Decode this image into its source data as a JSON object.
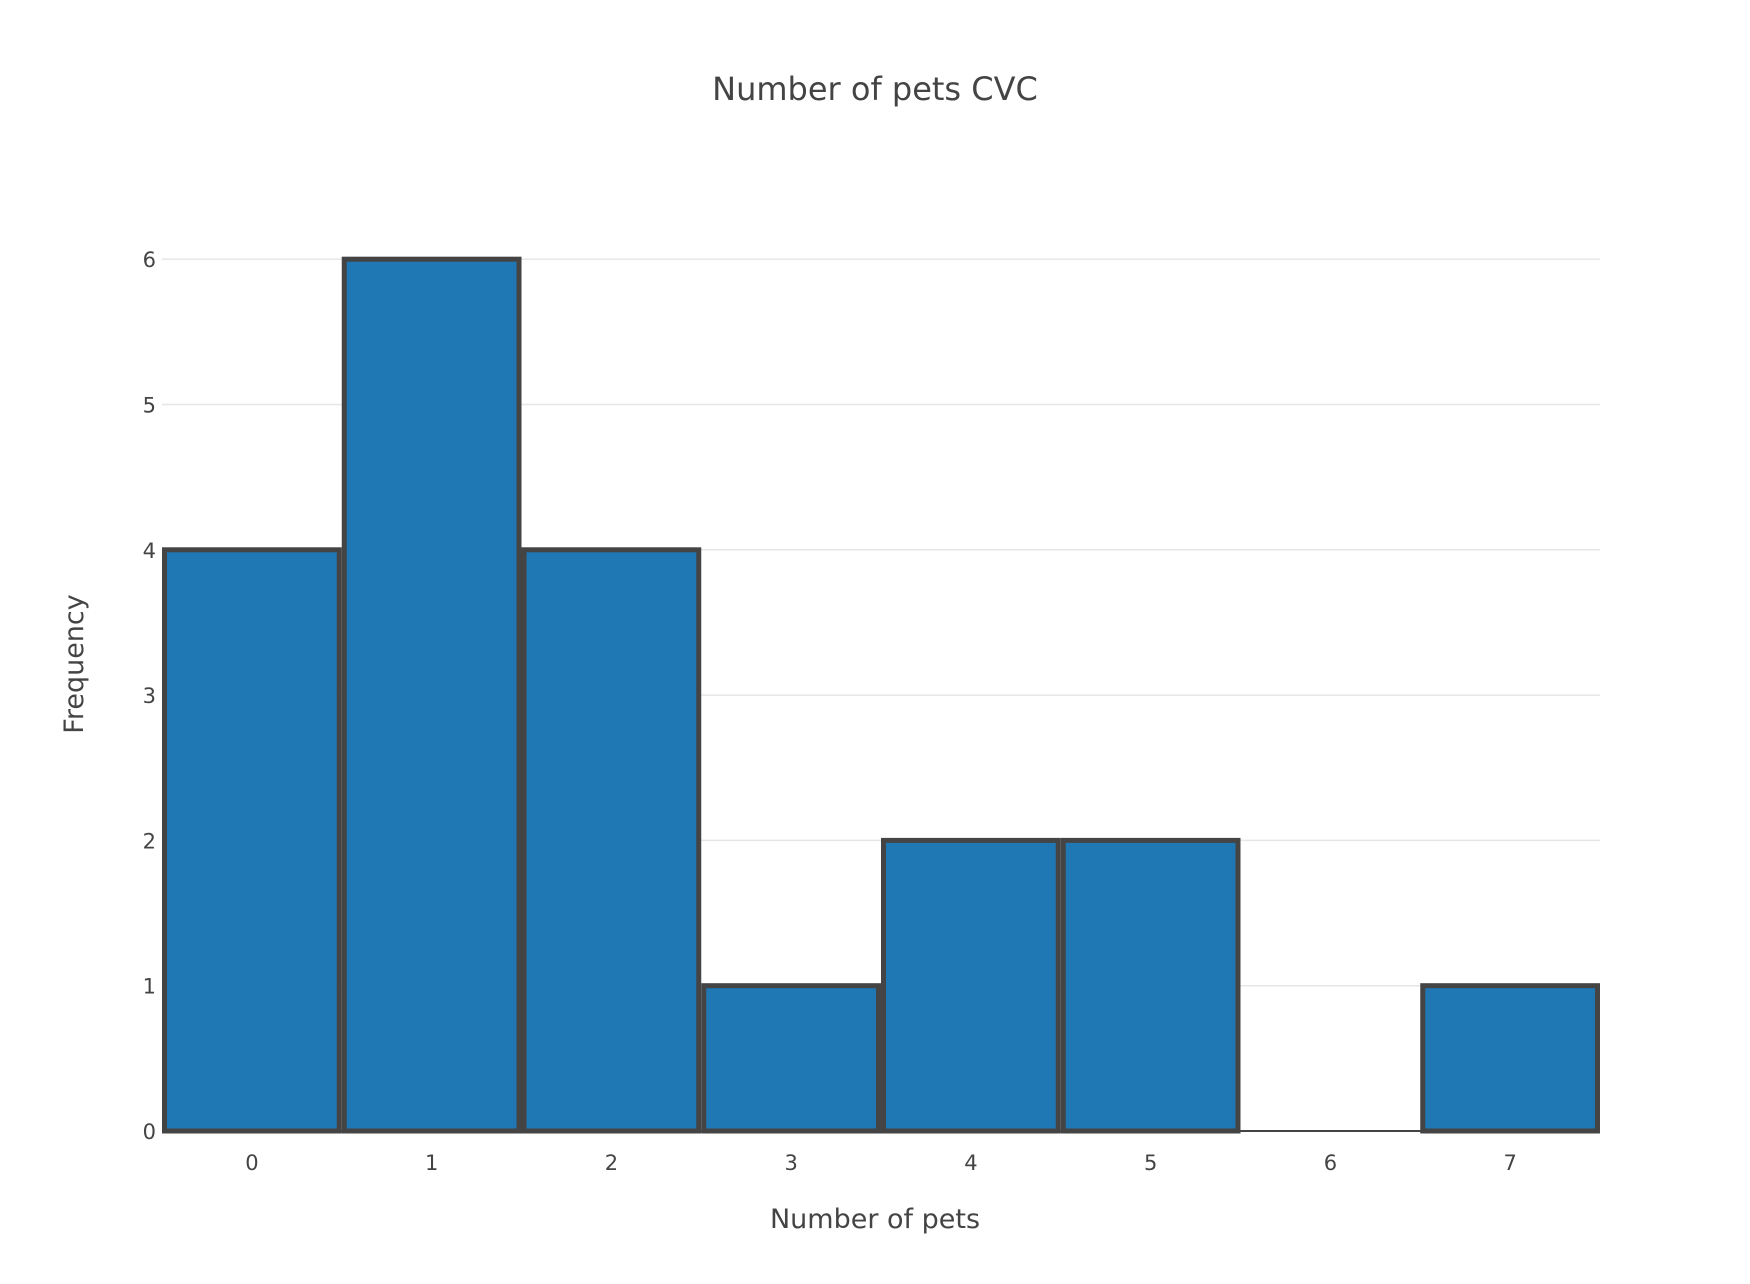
{
  "chart_data": {
    "type": "bar",
    "title": "Number of pets CVC",
    "xlabel": "Number of pets",
    "ylabel": "Frequency",
    "categories": [
      0,
      1,
      2,
      3,
      4,
      5,
      6,
      7
    ],
    "values": [
      4,
      6,
      4,
      1,
      2,
      2,
      0,
      1
    ],
    "ylim": [
      0,
      6.6
    ],
    "yticks": [
      0,
      1,
      2,
      3,
      4,
      5,
      6
    ],
    "xticks": [
      0,
      1,
      2,
      3,
      4,
      5,
      6,
      7
    ],
    "grid": true,
    "bar_color": "#1f77b4",
    "bar_outline_color": "#444444",
    "grid_color": "#e6e6e6"
  }
}
